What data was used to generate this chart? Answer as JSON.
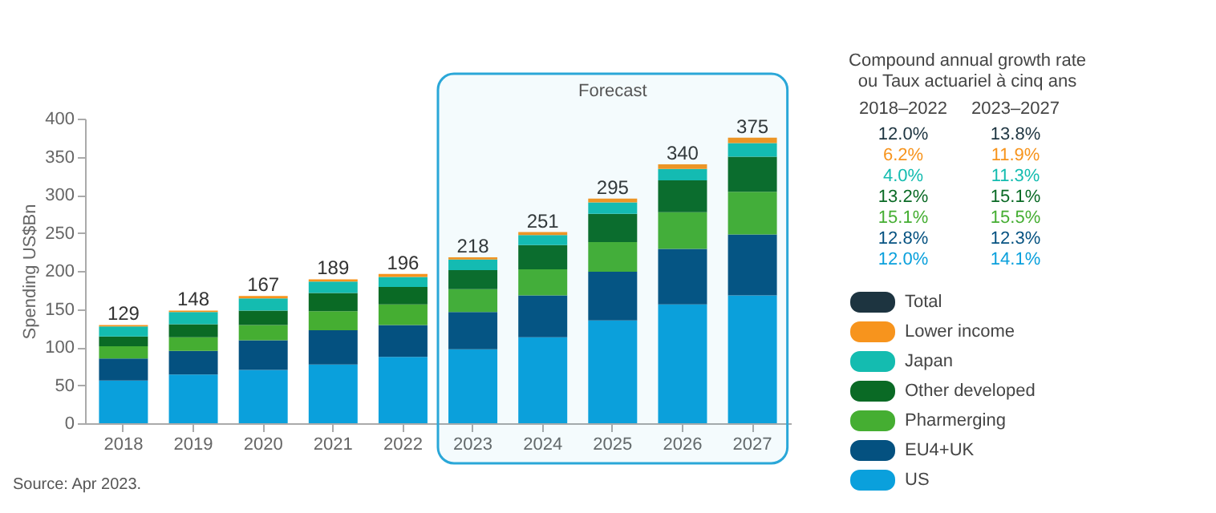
{
  "chart_data": {
    "type": "bar",
    "stacked": true,
    "ylabel": "Spending US$Bn",
    "categories": [
      "2018",
      "2019",
      "2020",
      "2021",
      "2022",
      "2023",
      "2024",
      "2025",
      "2026",
      "2027"
    ],
    "series": [
      {
        "name": "US",
        "color": "#0aa0dc",
        "values": [
          56,
          64,
          70,
          77,
          87,
          97,
          113,
          135,
          156,
          168
        ]
      },
      {
        "name": "EU4+UK",
        "color": "#045180",
        "values": [
          29,
          31,
          39,
          45,
          42,
          49,
          55,
          64,
          73,
          80
        ]
      },
      {
        "name": "Pharmerging",
        "color": "#45ae32",
        "values": [
          16,
          18,
          20,
          25,
          27,
          30,
          34,
          39,
          48,
          56
        ]
      },
      {
        "name": "Other developed",
        "color": "#0a6a25",
        "values": [
          13,
          17,
          19,
          24,
          23,
          25,
          32,
          37,
          42,
          46
        ]
      },
      {
        "name": "Japan",
        "color": "#14bcb0",
        "values": [
          13,
          16,
          16,
          15,
          13,
          14,
          13,
          15,
          15,
          18
        ]
      },
      {
        "name": "Lower income",
        "color": "#f7941d",
        "values": [
          2,
          2,
          3,
          3,
          4,
          3,
          4,
          5,
          6,
          7
        ]
      },
      {
        "name": "Total",
        "color": "#1d3440",
        "values": [
          null,
          null,
          null,
          null,
          null,
          null,
          null,
          null,
          null,
          null
        ]
      }
    ],
    "totals": [
      "129",
      "148",
      "167",
      "189",
      "196",
      "218",
      "251",
      "295",
      "340",
      "375"
    ],
    "ylim": [
      0,
      400
    ],
    "yticks": [
      0,
      50,
      100,
      150,
      200,
      250,
      300,
      350,
      400
    ],
    "grid": false,
    "legend": "right",
    "bands": [
      {
        "axis": "x",
        "from": "2023",
        "to": "2027",
        "label": "Forecast",
        "color": "#2aa7d8"
      }
    ],
    "annotations": [
      "Compound annual growth rate",
      "ou Taux actuariel à cinq ans",
      "2018–2022",
      "2023–2027",
      "12.0%",
      "13.8%",
      "6.2%",
      "11.9%",
      "4.0%",
      "11.3%",
      "13.2%",
      "15.1%",
      "15.1%",
      "15.5%",
      "12.8%",
      "12.3%",
      "12.0%",
      "14.1%",
      "Source: Apr 2023."
    ]
  }
}
